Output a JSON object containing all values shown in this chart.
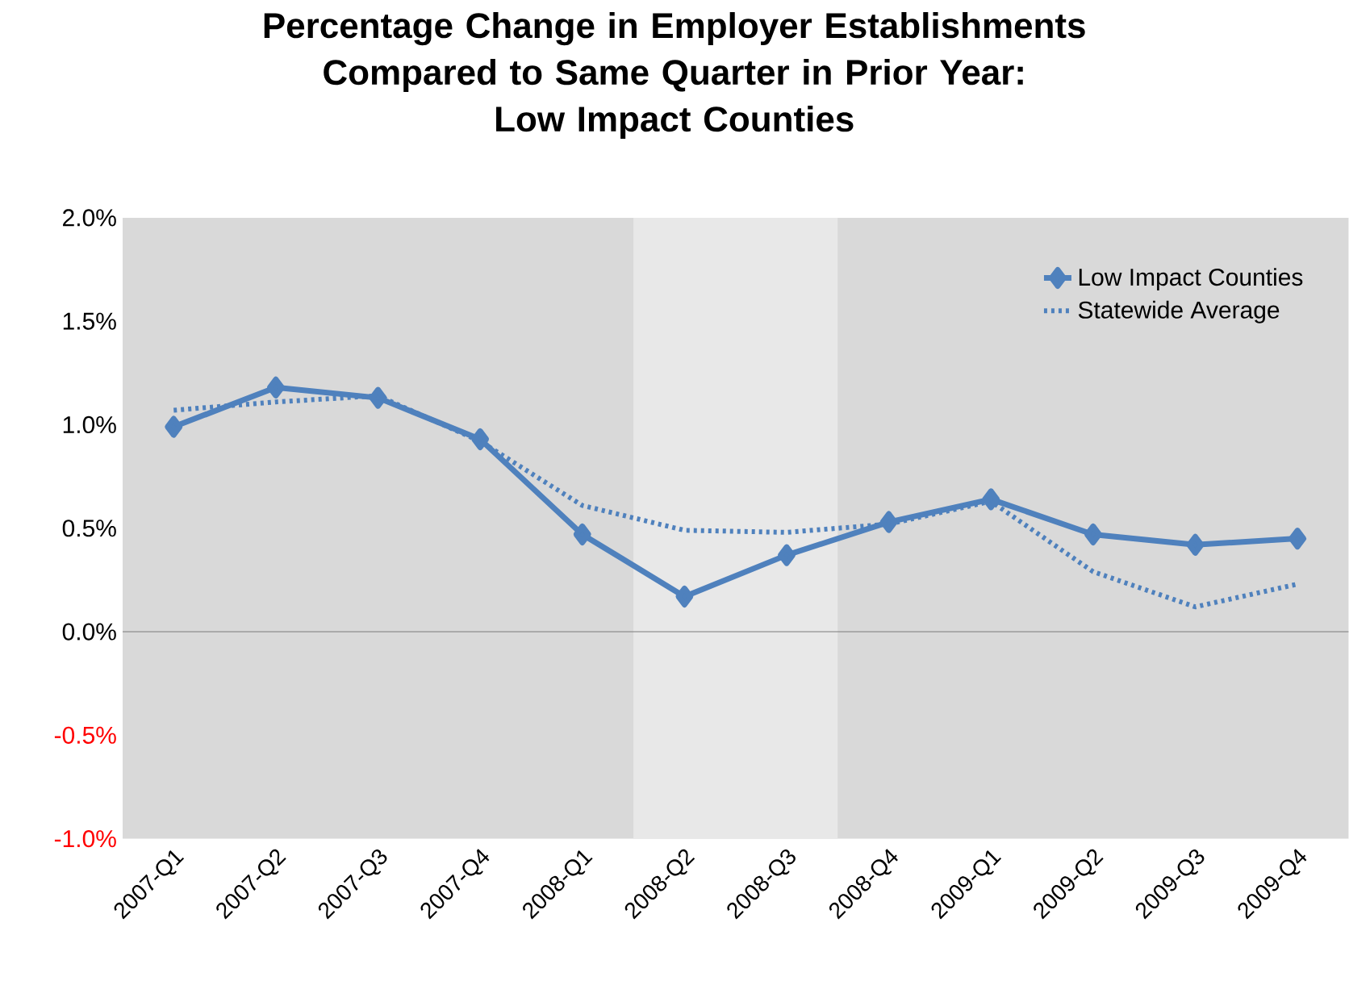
{
  "chart_data": {
    "type": "line",
    "title": "Percentage Change in Employer Establishments\nCompared to Same Quarter in Prior Year:\nLow Impact Counties",
    "categories": [
      "2007-Q1",
      "2007-Q2",
      "2007-Q3",
      "2007-Q4",
      "2008-Q1",
      "2008-Q2",
      "2008-Q3",
      "2008-Q4",
      "2009-Q1",
      "2009-Q2",
      "2009-Q3",
      "2009-Q4"
    ],
    "series": [
      {
        "name": "Low Impact Counties",
        "color": "#4f81bd",
        "marker": "diamond",
        "line_style": "solid",
        "values": [
          0.99,
          1.18,
          1.13,
          0.93,
          0.47,
          0.17,
          0.37,
          0.53,
          0.64,
          0.47,
          0.42,
          0.45
        ]
      },
      {
        "name": "Statewide Average",
        "color": "#4f81bd",
        "marker": "none",
        "line_style": "dotted",
        "values": [
          1.07,
          1.11,
          1.14,
          0.92,
          0.61,
          0.49,
          0.48,
          0.52,
          0.63,
          0.29,
          0.12,
          0.23
        ]
      }
    ],
    "ylim": [
      -1.0,
      2.0
    ],
    "yticks": [
      {
        "value": -1.0,
        "label": "-1.0%"
      },
      {
        "value": -0.5,
        "label": "-0.5%"
      },
      {
        "value": 0,
        "label": "0.0%"
      },
      {
        "value": 0.5,
        "label": "0.5%"
      },
      {
        "value": 1.0,
        "label": "1.0%"
      },
      {
        "value": 1.5,
        "label": "1.5%"
      },
      {
        "value": 2.0,
        "label": "2.0%"
      }
    ],
    "bands": [
      {
        "axis": "x",
        "from": "2008-Q2",
        "to": "2008-Q3",
        "color": "#e8e8e8"
      }
    ],
    "ref_lines": [
      {
        "axis": "y",
        "value": 0,
        "color": "#808080"
      }
    ],
    "grid": false,
    "legend": "top right"
  }
}
